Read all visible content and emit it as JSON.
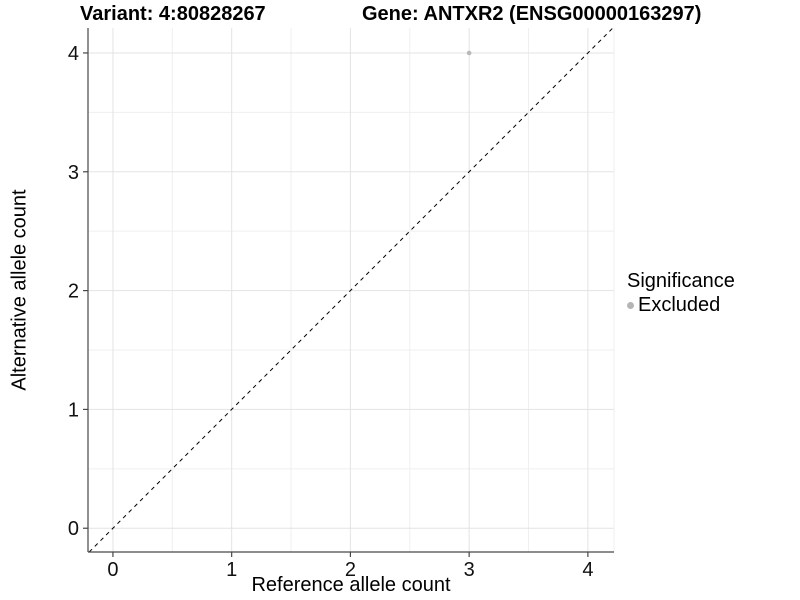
{
  "titles": {
    "variant": "Variant: 4:80828267",
    "gene": "Gene: ANTXR2 (ENSG00000163297)"
  },
  "chart_data": {
    "type": "scatter",
    "title_left": "Variant: 4:80828267",
    "title_right": "Gene: ANTXR2 (ENSG00000163297)",
    "xlabel": "Reference allele count",
    "ylabel": "Alternative allele count",
    "xlim": [
      -0.21,
      4.22
    ],
    "ylim": [
      -0.2,
      4.21
    ],
    "xticks": [
      0,
      1,
      2,
      3,
      4
    ],
    "yticks": [
      0,
      1,
      2,
      3,
      4
    ],
    "xminor": [
      0.5,
      1.5,
      2.5,
      3.5
    ],
    "yminor": [
      0.5,
      1.5,
      2.5,
      3.5
    ],
    "grid": true,
    "identity_line": {
      "style": "dashed",
      "color": "#000000"
    },
    "series": [
      {
        "name": "Excluded",
        "color": "#b9b9b9",
        "points": [
          {
            "x": 3,
            "y": 4
          }
        ]
      }
    ],
    "legend": {
      "title": "Significance",
      "position": "right",
      "items": [
        {
          "label": "Excluded",
          "color": "#b5b5b5"
        }
      ]
    },
    "colors": {
      "grid_major": "#e3e3e3",
      "grid_minor": "#efefef",
      "axis_line": "#474747",
      "tick_label": "#111111",
      "background": "#ffffff"
    }
  }
}
